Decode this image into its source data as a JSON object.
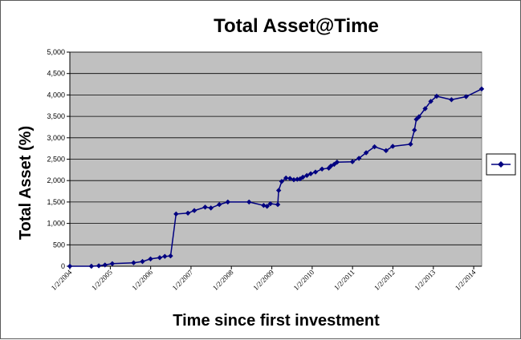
{
  "chart_data": {
    "type": "line",
    "title": "Total Asset@Time",
    "xlabel": "Time since first investment",
    "ylabel": "Total Asset (%)",
    "ylim": [
      0,
      5000
    ],
    "yticks": [
      "0",
      "500",
      "1,000",
      "1,500",
      "2,000",
      "2,500",
      "3,000",
      "3,500",
      "4,000",
      "4,500",
      "5,000"
    ],
    "ytick_values": [
      0,
      500,
      1000,
      1500,
      2000,
      2500,
      3000,
      3500,
      4000,
      4500,
      5000
    ],
    "xlim": [
      "2004-01-02",
      "2014-03-15"
    ],
    "xticks": [
      "1/2/2004",
      "1/2/2005",
      "1/2/2006",
      "1/2/2007",
      "1/2/2008",
      "1/2/2009",
      "1/2/2010",
      "1/2/2011",
      "1/2/2012",
      "1/2/2013",
      "1/2/2014"
    ],
    "xtick_dates": [
      "2004-01-02",
      "2005-01-02",
      "2006-01-02",
      "2007-01-02",
      "2008-01-02",
      "2009-01-02",
      "2010-01-02",
      "2011-01-02",
      "2012-01-02",
      "2013-01-02",
      "2014-01-02"
    ],
    "grid": "horizontal",
    "legend": "right",
    "plot_background": "#c0c0c0",
    "series_color": "#000080",
    "series": [
      {
        "marker": "diamond",
        "x": [
          "2004-01-02",
          "2004-07-15",
          "2004-09-20",
          "2004-11-15",
          "2005-01-20",
          "2005-08-01",
          "2005-10-20",
          "2006-01-01",
          "2006-03-25",
          "2006-05-10",
          "2006-07-01",
          "2006-08-20",
          "2006-12-05",
          "2007-02-01",
          "2007-05-10",
          "2007-07-01",
          "2007-09-15",
          "2007-12-01",
          "2008-06-10",
          "2008-10-20",
          "2008-11-20",
          "2008-12-20",
          "2009-02-25",
          "2009-03-05",
          "2009-04-01",
          "2009-05-10",
          "2009-06-15",
          "2009-07-20",
          "2009-08-20",
          "2009-09-15",
          "2009-10-10",
          "2009-11-15",
          "2009-12-20",
          "2010-02-01",
          "2010-04-01",
          "2010-06-01",
          "2010-06-20",
          "2010-07-20",
          "2010-08-15",
          "2011-01-01",
          "2011-03-01",
          "2011-05-05",
          "2011-07-20",
          "2011-11-01",
          "2012-01-01",
          "2012-06-10",
          "2012-07-15",
          "2012-08-01",
          "2012-08-25",
          "2012-10-20",
          "2012-12-10",
          "2013-02-01",
          "2013-06-15",
          "2013-10-25",
          "2014-03-15"
        ],
        "y": [
          0,
          0,
          10,
          30,
          60,
          80,
          110,
          170,
          200,
          230,
          240,
          1220,
          1240,
          1300,
          1380,
          1360,
          1440,
          1500,
          1500,
          1420,
          1400,
          1460,
          1440,
          1770,
          1980,
          2060,
          2050,
          2020,
          2030,
          2040,
          2080,
          2120,
          2160,
          2200,
          2270,
          2290,
          2340,
          2380,
          2430,
          2440,
          2520,
          2650,
          2790,
          2700,
          2800,
          2850,
          3180,
          3430,
          3490,
          3680,
          3850,
          3970,
          3890,
          3960,
          4140
        ]
      }
    ]
  }
}
